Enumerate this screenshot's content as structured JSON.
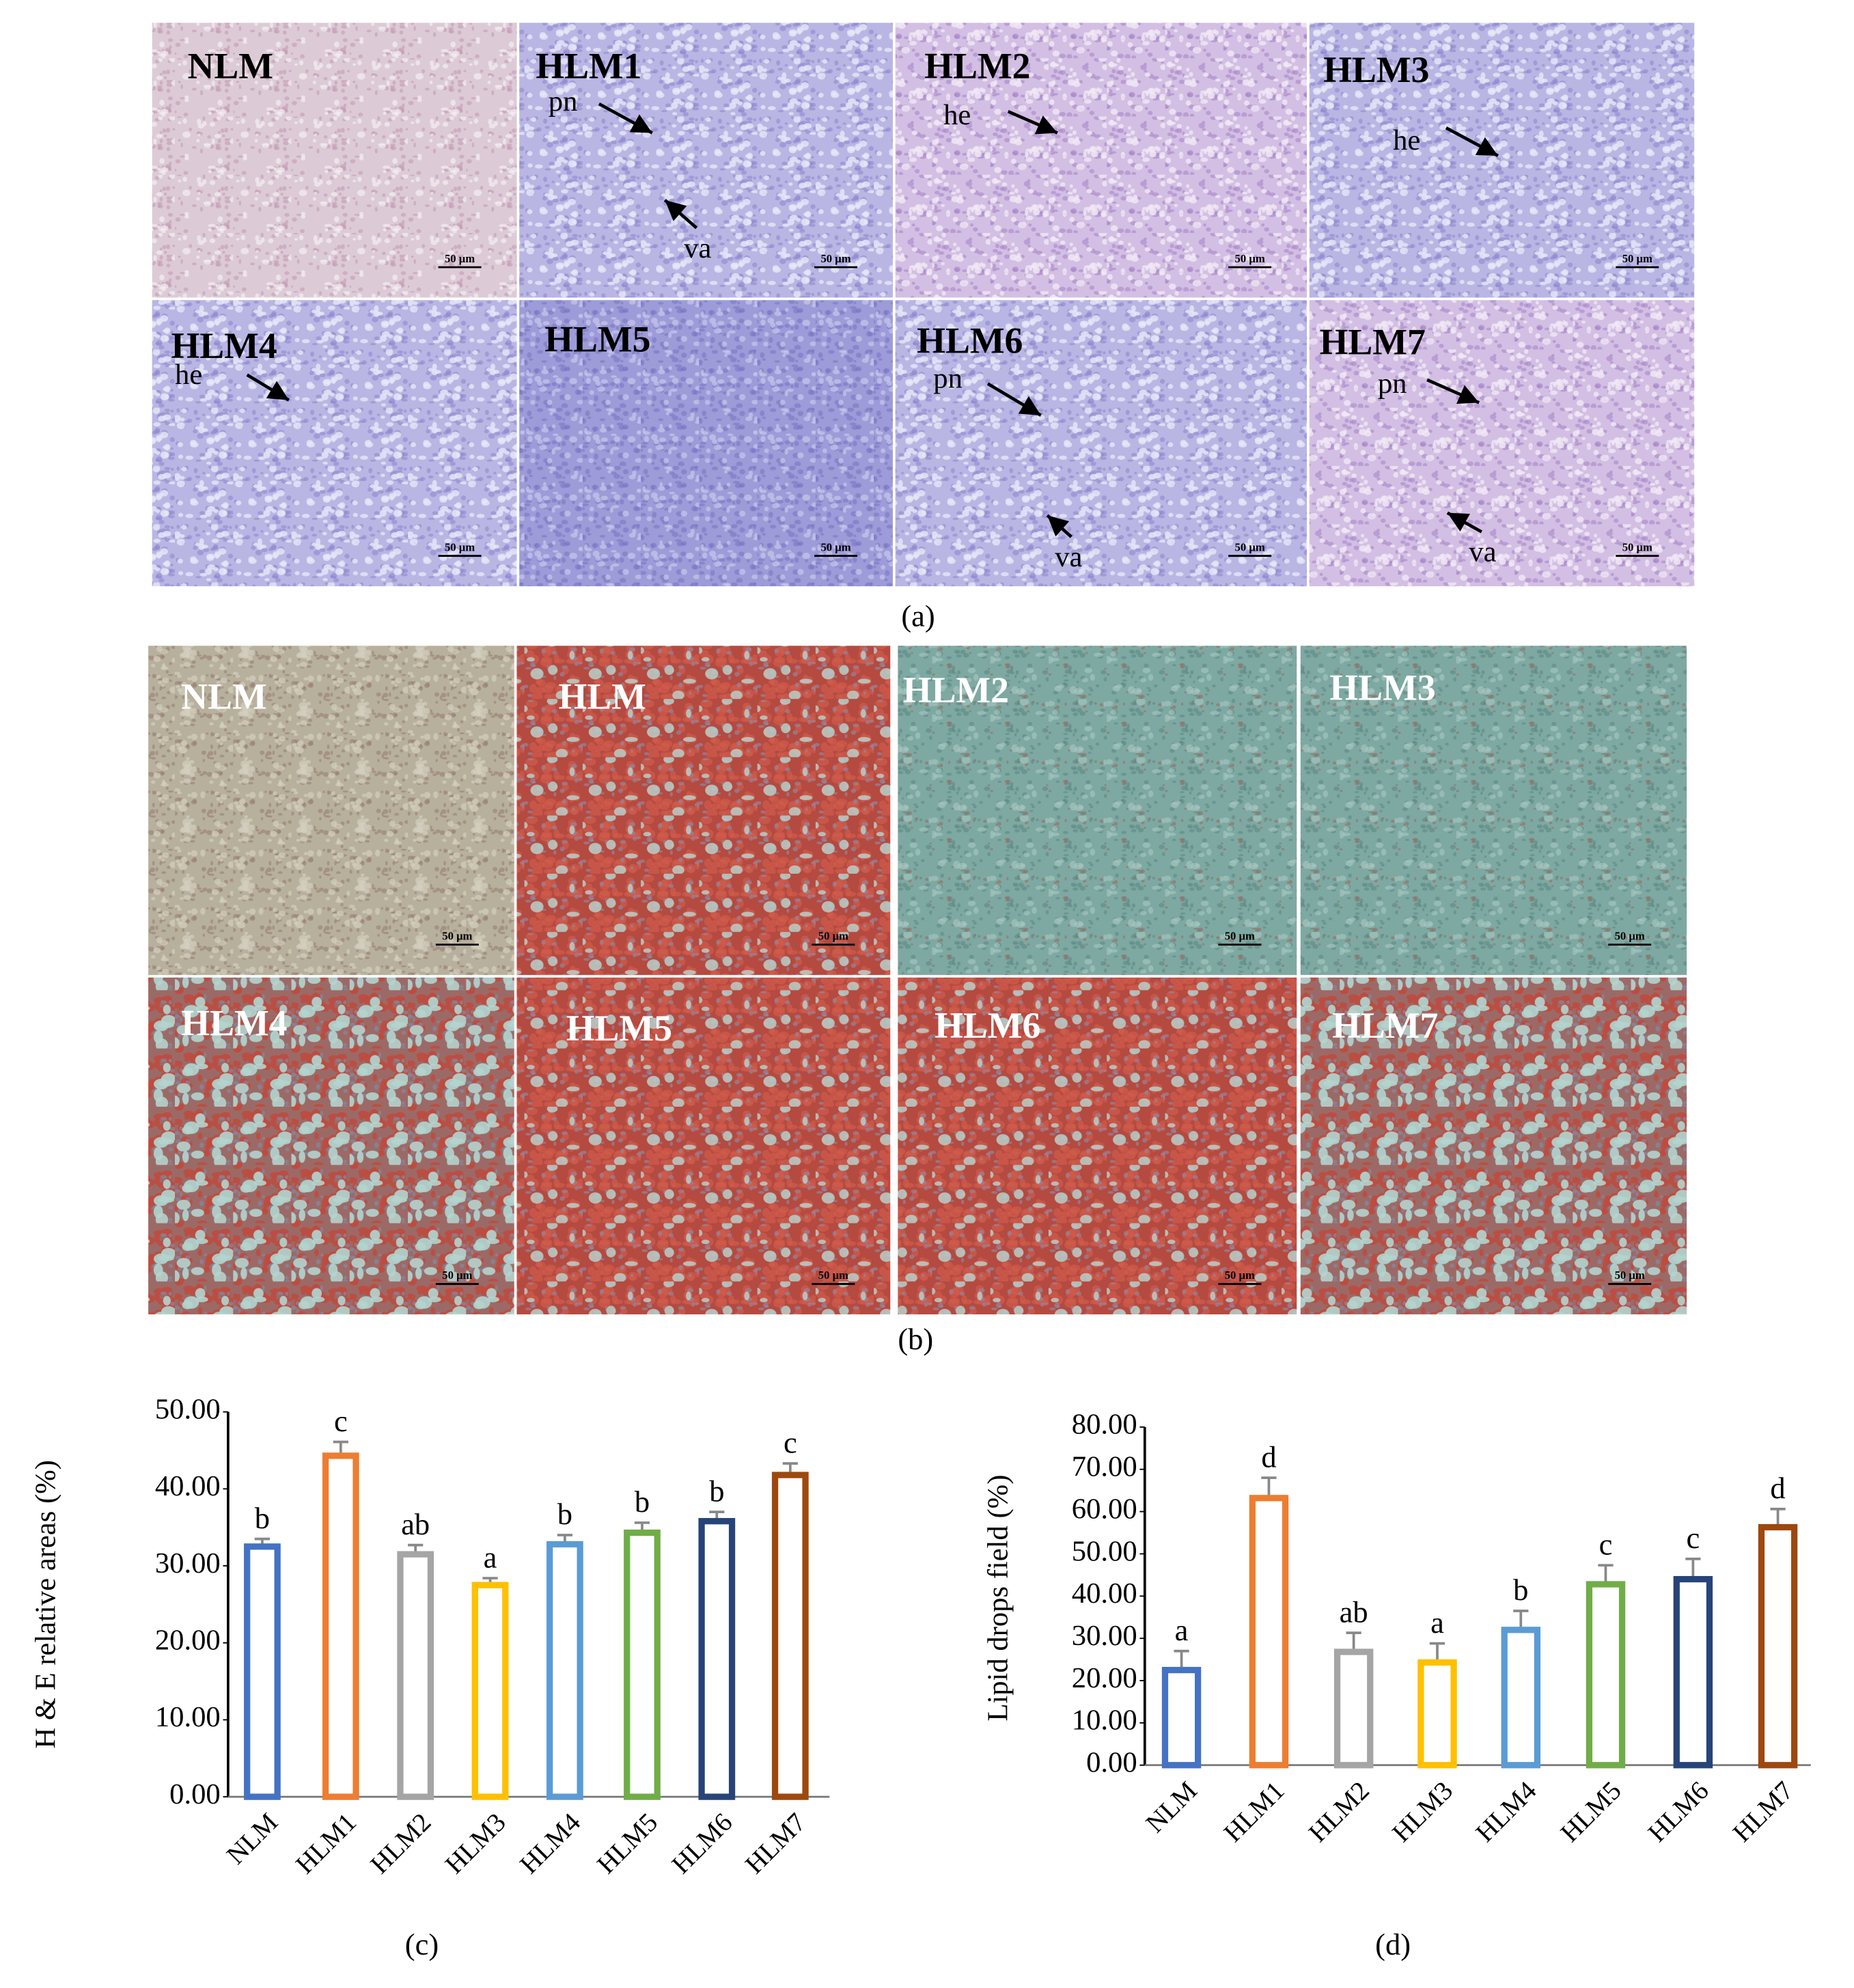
{
  "figure_a": {
    "caption": "(a)",
    "scale_bar": "50 μm",
    "panels": [
      {
        "label": "NLM",
        "notes": []
      },
      {
        "label": "HLM1",
        "notes": [
          "pn",
          "va"
        ]
      },
      {
        "label": "HLM2",
        "notes": [
          "he"
        ]
      },
      {
        "label": "HLM3",
        "notes": [
          "he"
        ]
      },
      {
        "label": "HLM4",
        "notes": [
          "he"
        ]
      },
      {
        "label": "HLM5",
        "notes": []
      },
      {
        "label": "HLM6",
        "notes": [
          "pn",
          "va"
        ]
      },
      {
        "label": "HLM7",
        "notes": [
          "pn",
          "va"
        ]
      }
    ]
  },
  "figure_b": {
    "caption": "(b)",
    "scale_bar": "50 μm",
    "panels": [
      {
        "label": "NLM"
      },
      {
        "label": "HLM"
      },
      {
        "label": "HLM2"
      },
      {
        "label": "HLM3"
      },
      {
        "label": "HLM4"
      },
      {
        "label": "HLM5"
      },
      {
        "label": "HLM6"
      },
      {
        "label": "HLM7"
      }
    ]
  },
  "chart_data": [
    {
      "type": "bar",
      "caption": "(c)",
      "y_label": "H & E  relative areas (%)",
      "categories": [
        "NLM",
        "HLM1",
        "HLM2",
        "HLM3",
        "HLM4",
        "HLM5",
        "HLM6",
        "HLM7"
      ],
      "values": [
        32.5,
        44.3,
        31.5,
        27.5,
        32.8,
        34.3,
        35.8,
        41.8
      ],
      "errors": [
        1.0,
        1.8,
        1.2,
        0.9,
        1.2,
        1.3,
        1.2,
        1.5
      ],
      "annotations": [
        "b",
        "c",
        "ab",
        "a",
        "b",
        "b",
        "b",
        "c"
      ],
      "colors": [
        "#4472c4",
        "#ed7d31",
        "#a5a5a5",
        "#ffc000",
        "#5b9bd5",
        "#70ad47",
        "#264478",
        "#9e480e"
      ],
      "ylim": [
        0,
        50
      ],
      "yticks": [
        {
          "value": 0,
          "label": "0.00"
        },
        {
          "value": 10,
          "label": "10.00"
        },
        {
          "value": 20,
          "label": "20.00"
        },
        {
          "value": 30,
          "label": "30.00"
        },
        {
          "value": 40,
          "label": "40.00"
        },
        {
          "value": 50,
          "label": "50.00"
        }
      ],
      "grid": false
    },
    {
      "type": "bar",
      "caption": "(d)",
      "y_label": "Lipid drops field (%)",
      "categories": [
        "NLM",
        "HLM1",
        "HLM2",
        "HLM3",
        "HLM4",
        "HLM5",
        "HLM6",
        "HLM7"
      ],
      "values": [
        22.5,
        63.2,
        26.8,
        24.3,
        32.0,
        42.8,
        44.0,
        56.3
      ],
      "errors": [
        4.5,
        4.8,
        4.5,
        4.5,
        4.5,
        4.5,
        4.8,
        4.3
      ],
      "annotations": [
        "a",
        "d",
        "ab",
        "a",
        "b",
        "c",
        "c",
        "d"
      ],
      "colors": [
        "#4472c4",
        "#ed7d31",
        "#a5a5a5",
        "#ffc000",
        "#5b9bd5",
        "#70ad47",
        "#264478",
        "#9e480e"
      ],
      "ylim": [
        0,
        80
      ],
      "yticks": [
        {
          "value": 0,
          "label": "0.00"
        },
        {
          "value": 10,
          "label": "10.00"
        },
        {
          "value": 20,
          "label": "20.00"
        },
        {
          "value": 30,
          "label": "30.00"
        },
        {
          "value": 40,
          "label": "40.00"
        },
        {
          "value": 50,
          "label": "50.00"
        },
        {
          "value": 60,
          "label": "60.00"
        },
        {
          "value": 70,
          "label": "70.00"
        },
        {
          "value": 80,
          "label": "80.00"
        }
      ],
      "grid": false
    }
  ]
}
